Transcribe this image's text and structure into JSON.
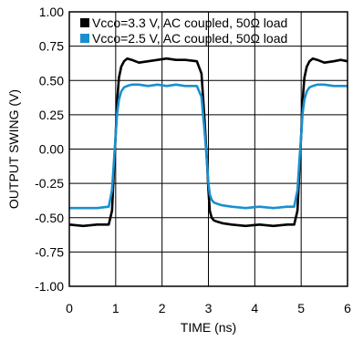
{
  "chart_data": {
    "type": "line",
    "title": "",
    "xlabel": "TIME (ns)",
    "ylabel": "OUTPUT SWING (V)",
    "xlim": [
      0,
      6
    ],
    "ylim": [
      -1.0,
      1.0
    ],
    "x_ticks": [
      0,
      1,
      2,
      3,
      4,
      5,
      6
    ],
    "x_tick_labels": [
      "0",
      "1",
      "2",
      "3",
      "4",
      "5",
      "6"
    ],
    "y_ticks": [
      1.0,
      0.75,
      0.5,
      0.25,
      0.0,
      -0.25,
      -0.5,
      -0.75,
      -1.0
    ],
    "y_tick_labels": [
      "1.00",
      "0.75",
      "0.50",
      "0.25",
      "0.00",
      "-0.25",
      "-0.50",
      "-0.75",
      "-1.00"
    ],
    "grid": true,
    "legend_position": "top-left",
    "series": [
      {
        "name": "Vcco=3.3 V, AC coupled, 50Ω load",
        "color": "#000000",
        "x": [
          0.0,
          0.3,
          0.6,
          0.85,
          0.92,
          0.97,
          1.0,
          1.03,
          1.07,
          1.12,
          1.18,
          1.25,
          1.35,
          1.5,
          1.7,
          1.9,
          2.1,
          2.3,
          2.5,
          2.75,
          2.85,
          2.92,
          2.97,
          3.0,
          3.03,
          3.07,
          3.12,
          3.2,
          3.3,
          3.5,
          3.8,
          4.1,
          4.4,
          4.7,
          4.85,
          4.92,
          4.97,
          5.0,
          5.03,
          5.07,
          5.12,
          5.18,
          5.25,
          5.35,
          5.5,
          5.7,
          5.85,
          6.0
        ],
        "y": [
          -0.55,
          -0.56,
          -0.55,
          -0.55,
          -0.45,
          -0.1,
          0.1,
          0.35,
          0.52,
          0.6,
          0.64,
          0.66,
          0.65,
          0.63,
          0.64,
          0.65,
          0.66,
          0.65,
          0.65,
          0.64,
          0.55,
          0.2,
          -0.1,
          -0.3,
          -0.45,
          -0.5,
          -0.52,
          -0.53,
          -0.54,
          -0.55,
          -0.56,
          -0.55,
          -0.56,
          -0.55,
          -0.55,
          -0.45,
          -0.1,
          0.1,
          0.35,
          0.52,
          0.6,
          0.64,
          0.66,
          0.65,
          0.63,
          0.64,
          0.65,
          0.64
        ]
      },
      {
        "name": "Vcco=2.5 V, AC coupled, 50Ω load",
        "color": "#1a8fd0",
        "x": [
          0.0,
          0.3,
          0.6,
          0.85,
          0.92,
          0.97,
          1.0,
          1.03,
          1.07,
          1.12,
          1.18,
          1.25,
          1.35,
          1.5,
          1.7,
          1.9,
          2.1,
          2.3,
          2.5,
          2.75,
          2.85,
          2.92,
          2.97,
          3.0,
          3.03,
          3.07,
          3.12,
          3.2,
          3.3,
          3.5,
          3.8,
          4.1,
          4.4,
          4.7,
          4.85,
          4.92,
          4.97,
          5.0,
          5.03,
          5.07,
          5.12,
          5.18,
          5.25,
          5.35,
          5.5,
          5.7,
          5.85,
          6.0
        ],
        "y": [
          -0.43,
          -0.43,
          -0.43,
          -0.42,
          -0.3,
          -0.05,
          0.1,
          0.26,
          0.36,
          0.42,
          0.45,
          0.46,
          0.47,
          0.47,
          0.46,
          0.47,
          0.46,
          0.47,
          0.46,
          0.46,
          0.38,
          0.12,
          -0.1,
          -0.25,
          -0.33,
          -0.37,
          -0.39,
          -0.4,
          -0.41,
          -0.42,
          -0.43,
          -0.42,
          -0.43,
          -0.42,
          -0.42,
          -0.3,
          -0.05,
          0.1,
          0.26,
          0.36,
          0.42,
          0.45,
          0.46,
          0.47,
          0.47,
          0.46,
          0.46,
          0.46
        ]
      }
    ]
  }
}
